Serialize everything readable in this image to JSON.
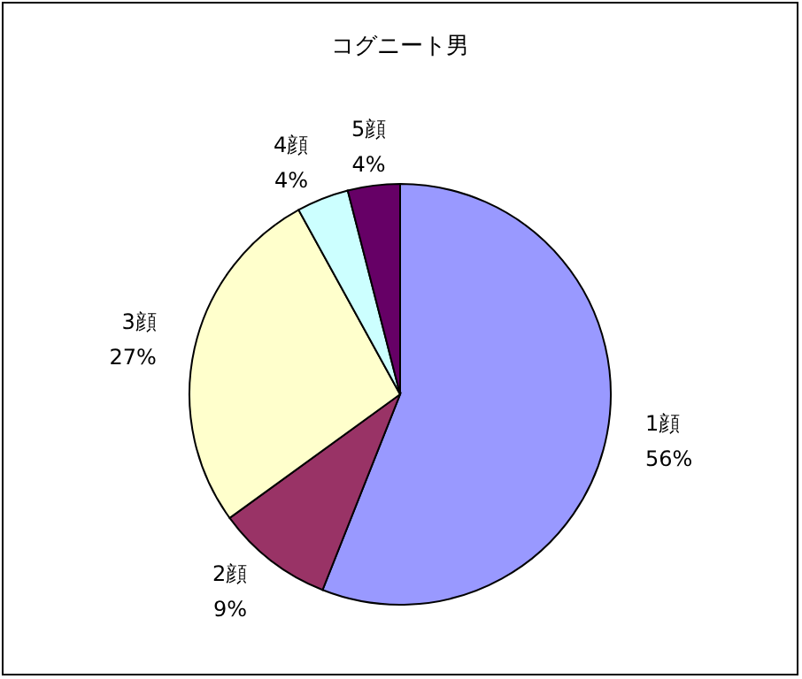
{
  "chart_data": {
    "type": "pie",
    "title": "コグニート男",
    "categories": [
      "1顔",
      "2顔",
      "3顔",
      "4顔",
      "5顔"
    ],
    "values": [
      56,
      9,
      27,
      4,
      4
    ],
    "colors": [
      "#9999ff",
      "#993366",
      "#ffffcc",
      "#ccffff",
      "#660066"
    ],
    "value_labels": [
      "56%",
      "9%",
      "27%",
      "4%",
      "4%"
    ]
  }
}
